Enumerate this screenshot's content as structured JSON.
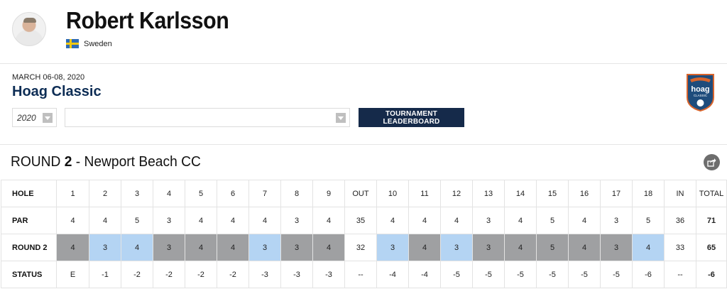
{
  "player": {
    "name": "Robert Karlsson",
    "country": "Sweden",
    "flag_colors": {
      "field": "#2e6bb5",
      "cross": "#f2c811"
    }
  },
  "tournament": {
    "dates": "MARCH 06-08, 2020",
    "name": "Hoag Classic",
    "year_select": {
      "value": "2020"
    },
    "tournament_select": {
      "value": ""
    },
    "leaderboard_button": "TOURNAMENT LEADERBOARD",
    "logo": {
      "text_top": "hoag",
      "text_bottom": "CLASSIC"
    }
  },
  "round": {
    "prefix": "ROUND",
    "number": "2",
    "course": "- Newport Beach CC"
  },
  "scorecard": {
    "columns": [
      "HOLE",
      "1",
      "2",
      "3",
      "4",
      "5",
      "6",
      "7",
      "8",
      "9",
      "OUT",
      "10",
      "11",
      "12",
      "13",
      "14",
      "15",
      "16",
      "17",
      "18",
      "IN",
      "TOTAL"
    ],
    "rows": [
      {
        "label": "PAR",
        "cells": [
          "4",
          "4",
          "5",
          "3",
          "4",
          "4",
          "4",
          "3",
          "4",
          "35",
          "4",
          "4",
          "4",
          "3",
          "4",
          "5",
          "4",
          "3",
          "5",
          "36",
          "71"
        ]
      },
      {
        "label": "ROUND 2",
        "cells": [
          "4",
          "3",
          "4",
          "3",
          "4",
          "4",
          "3",
          "3",
          "4",
          "32",
          "3",
          "4",
          "3",
          "3",
          "4",
          "5",
          "4",
          "3",
          "4",
          "33",
          "65"
        ]
      },
      {
        "label": "STATUS",
        "cells": [
          "E",
          "-1",
          "-2",
          "-2",
          "-2",
          "-2",
          "-3",
          "-3",
          "-3",
          "--",
          "-4",
          "-4",
          "-5",
          "-5",
          "-5",
          "-5",
          "-5",
          "-5",
          "-6",
          "--",
          "-6"
        ]
      }
    ],
    "colors": {
      "par": "#9fa0a2",
      "birdie": "#b4d4f3"
    }
  }
}
